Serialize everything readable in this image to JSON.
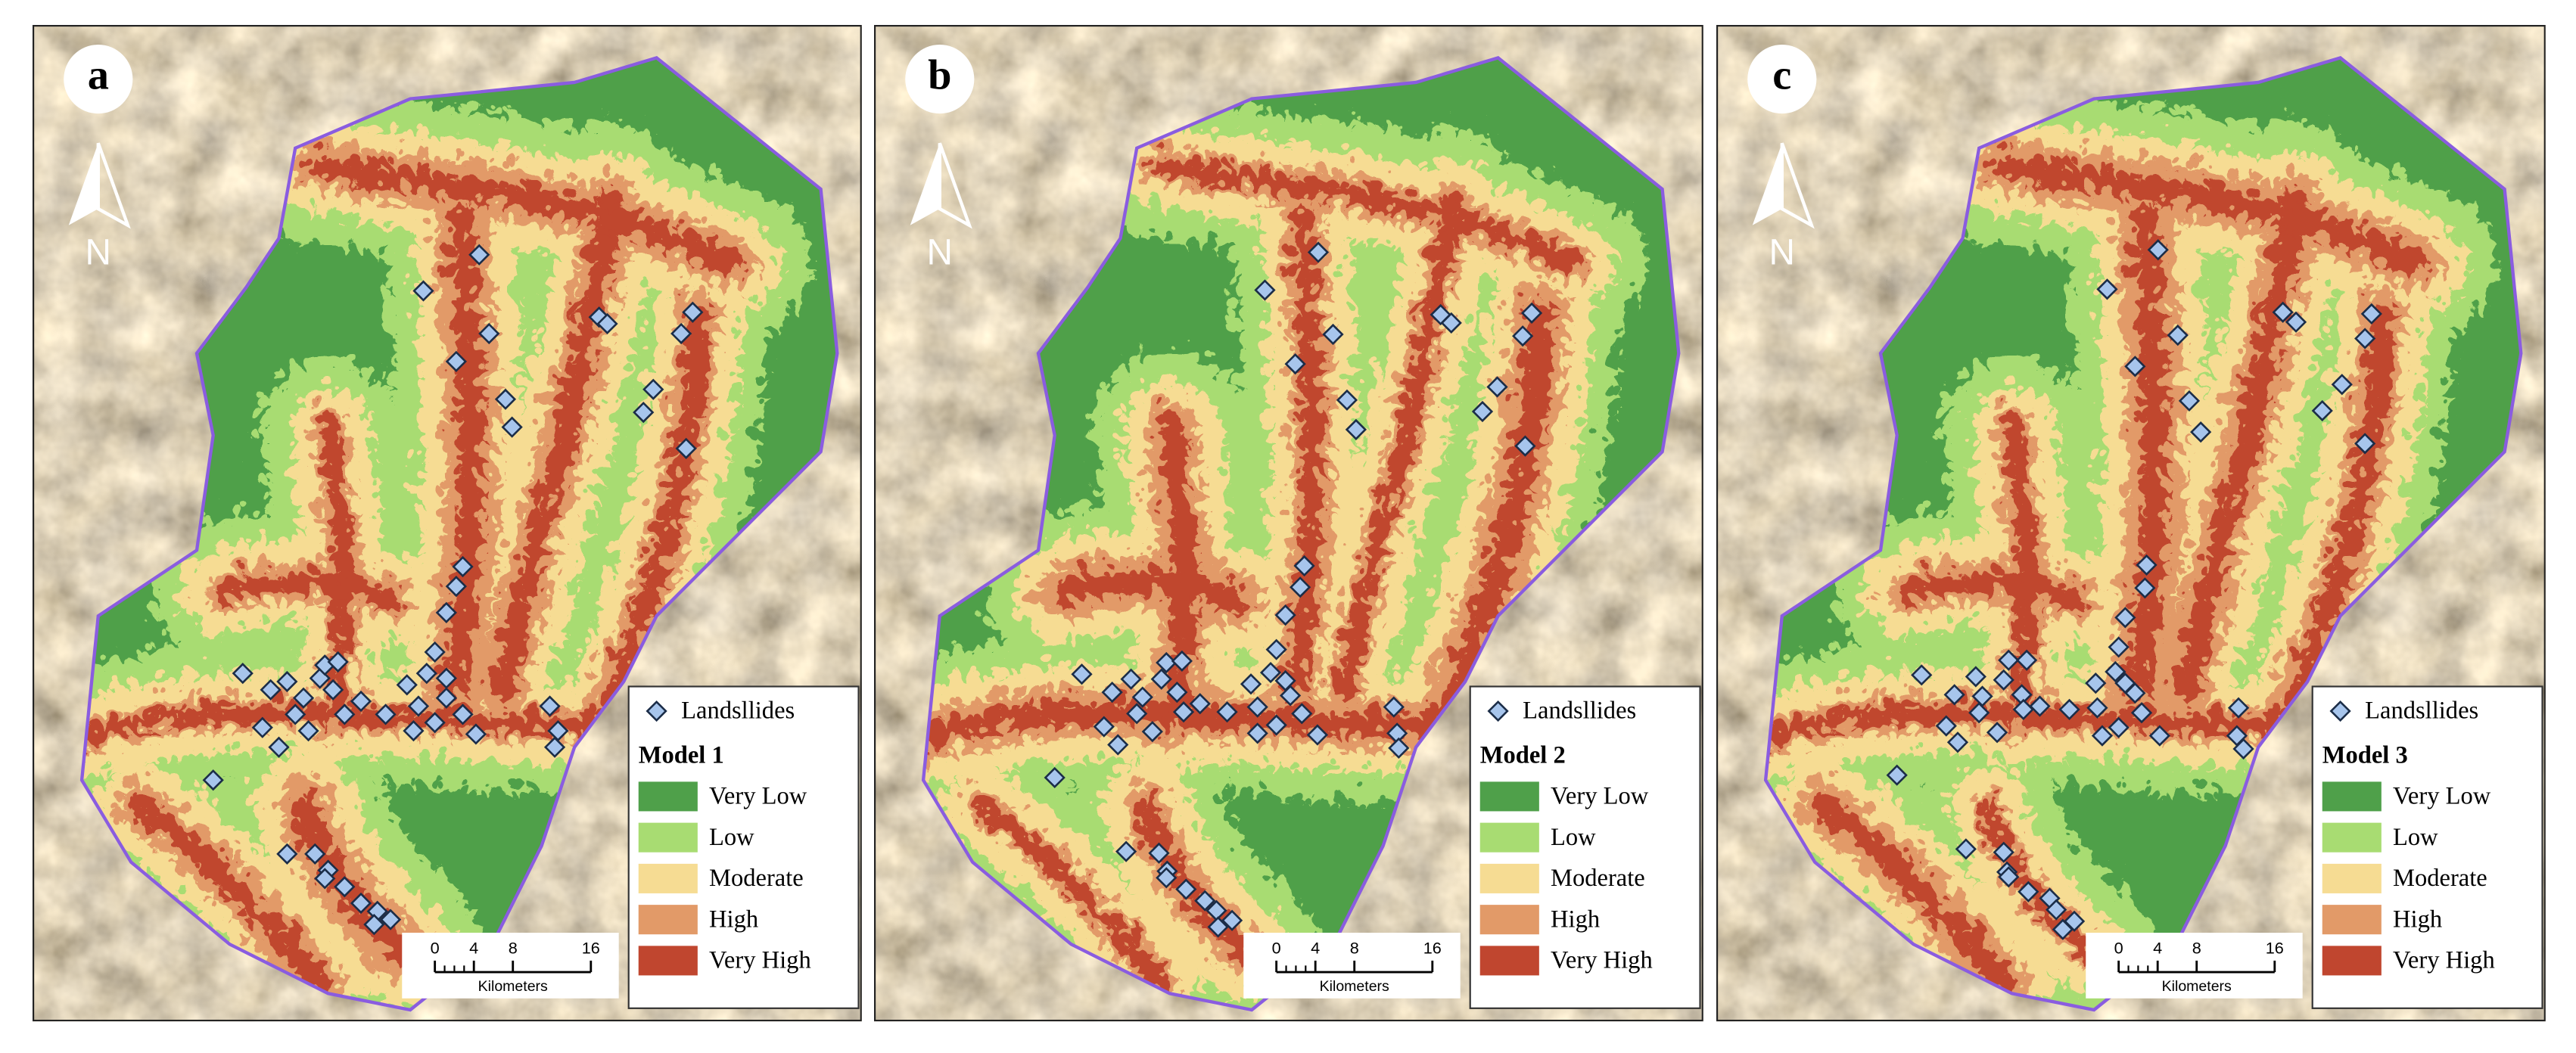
{
  "panels": [
    {
      "label": "a",
      "model": "Model 1"
    },
    {
      "label": "b",
      "model": "Model 2"
    },
    {
      "label": "c",
      "model": "Model 3"
    }
  ],
  "north": "N",
  "points_label": "Landsllides",
  "classes": [
    {
      "name": "Very Low",
      "color": "#4fa04a"
    },
    {
      "name": "Low",
      "color": "#a8dc72"
    },
    {
      "name": "Moderate",
      "color": "#f6dc93"
    },
    {
      "name": "High",
      "color": "#e29a68"
    },
    {
      "name": "Very High",
      "color": "#c0462f"
    }
  ],
  "scale_bar": {
    "ticks": [
      0,
      4,
      8,
      16
    ],
    "unit": "Kilometers"
  }
}
